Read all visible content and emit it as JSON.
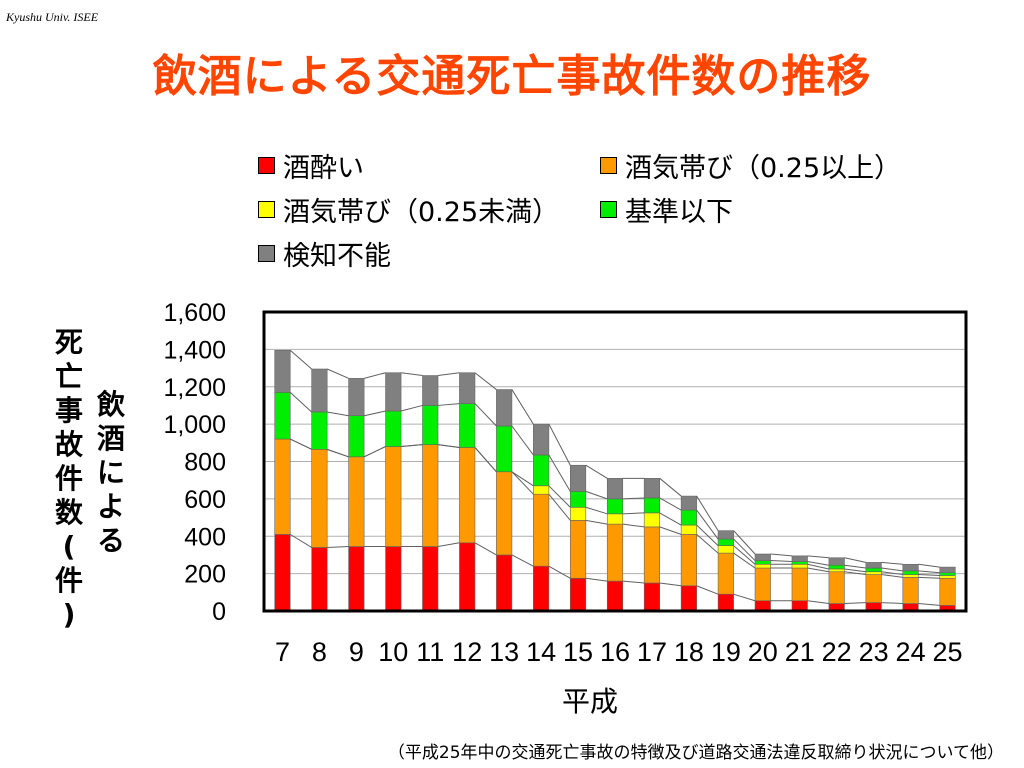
{
  "header": {
    "note": "Kyushu Univ. ISEE",
    "title": "飲酒による交通死亡事故件数の推移"
  },
  "footer": {
    "source": "（平成25年中の交通死亡事故の特徴及び道路交通法違反取締り状況について他）"
  },
  "axis": {
    "ylabel_line1": [
      "死",
      "亡",
      "事",
      "故",
      "件",
      "数",
      "(",
      "件",
      ")"
    ],
    "ylabel_line2": [
      "飲",
      "酒",
      "に",
      "よ",
      "る"
    ],
    "xlabel": "平成"
  },
  "colors": {
    "series": [
      "#ff0000",
      "#ff9900",
      "#ffff00",
      "#00ee00",
      "#808080"
    ],
    "title": "#ff4500"
  },
  "chart_data": {
    "type": "bar",
    "stacked": true,
    "categories": [
      "7",
      "8",
      "9",
      "10",
      "11",
      "12",
      "13",
      "14",
      "15",
      "16",
      "17",
      "18",
      "19",
      "20",
      "21",
      "22",
      "23",
      "24",
      "25"
    ],
    "series": [
      {
        "name": "酒酔い",
        "values": [
          410,
          340,
          345,
          345,
          345,
          365,
          300,
          240,
          175,
          160,
          150,
          135,
          90,
          55,
          55,
          40,
          45,
          40,
          30
        ]
      },
      {
        "name": "酒気帯び（0.25以上）",
        "values": [
          510,
          525,
          480,
          535,
          545,
          510,
          445,
          385,
          310,
          305,
          300,
          275,
          220,
          175,
          175,
          170,
          150,
          140,
          145
        ]
      },
      {
        "name": "酒気帯び（0.25未満）",
        "values": [
          0,
          0,
          0,
          0,
          0,
          0,
          0,
          45,
          70,
          55,
          75,
          50,
          40,
          20,
          20,
          15,
          15,
          15,
          15
        ]
      },
      {
        "name": "基準以下",
        "values": [
          250,
          200,
          220,
          190,
          210,
          235,
          245,
          165,
          85,
          80,
          80,
          80,
          35,
          20,
          15,
          20,
          20,
          20,
          15
        ]
      },
      {
        "name": "検知不能",
        "values": [
          225,
          230,
          200,
          205,
          160,
          165,
          195,
          165,
          140,
          110,
          105,
          75,
          45,
          35,
          30,
          40,
          30,
          35,
          30
        ]
      }
    ],
    "ylim": [
      0,
      1600
    ],
    "yticks": [
      0,
      200,
      400,
      600,
      800,
      1000,
      1200,
      1400,
      1600
    ],
    "ytick_labels": [
      "0",
      "200",
      "400",
      "600",
      "800",
      "1,000",
      "1,200",
      "1,400",
      "1,600"
    ],
    "grid": true,
    "legend_position": "top",
    "xlabel": "平成",
    "ylabel": "飲酒による死亡事故件数(件)"
  }
}
